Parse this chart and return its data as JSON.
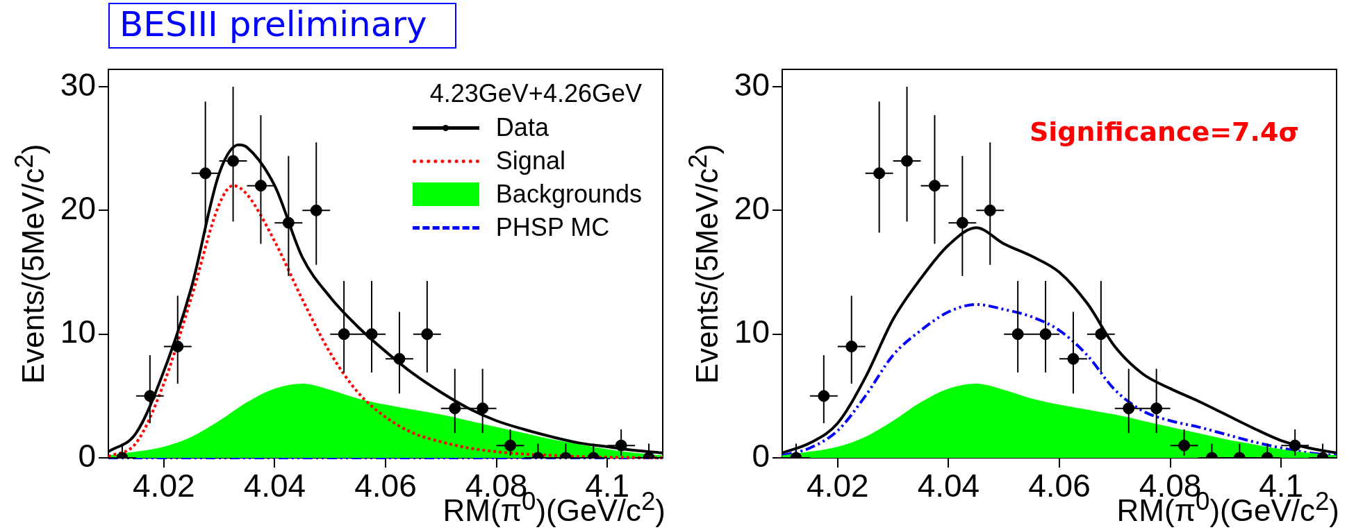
{
  "chart_data": [
    {
      "type": "scatter",
      "xlabel": "RM(π$^{0}$)(GeV/c$^{2}$)",
      "ylabel": "Events/(5MeV/c$^{2}$)",
      "xlim": [
        4.01,
        4.11
      ],
      "ylim": [
        0,
        31.4
      ],
      "xticks": [
        4.02,
        4.04,
        4.06,
        4.08,
        4.1
      ],
      "yticks": [
        0,
        10,
        20,
        30
      ],
      "legend": "top right",
      "legend_title": "4.23GeV+4.26GeV",
      "annotations": [
        "BESIII preliminary"
      ],
      "series": [
        {
          "name": "Data",
          "marker": "circle",
          "color": "#000000",
          "x": [
            4.0125,
            4.0175,
            4.0225,
            4.0275,
            4.0325,
            4.0375,
            4.0425,
            4.0475,
            4.0525,
            4.0575,
            4.0625,
            4.0675,
            4.0725,
            4.0775,
            4.0825,
            4.0875,
            4.0925,
            4.0975,
            4.1025,
            4.1075
          ],
          "values": [
            0,
            5,
            9,
            23,
            24,
            22,
            19,
            20,
            10,
            10,
            8,
            10,
            4,
            4,
            1,
            0,
            0,
            0,
            1,
            0
          ],
          "errors": [
            [
              0,
              1.15
            ],
            [
              2.8,
              8.3
            ],
            [
              6.0,
              13.1
            ],
            [
              18.2,
              28.8
            ],
            [
              19.1,
              30.0
            ],
            [
              17.3,
              27.7
            ],
            [
              14.7,
              24.4
            ],
            [
              15.6,
              25.5
            ],
            [
              6.9,
              14.3
            ],
            [
              6.9,
              14.3
            ],
            [
              5.2,
              11.8
            ],
            [
              6.9,
              14.3
            ],
            [
              2.0,
              7.2
            ],
            [
              2.0,
              7.2
            ],
            [
              0.17,
              2.3
            ],
            [
              0,
              1.15
            ],
            [
              0,
              1.15
            ],
            [
              0,
              1.15
            ],
            [
              0.17,
              2.3
            ],
            [
              0,
              1.15
            ]
          ],
          "xerrors": [
            0.0025,
            0.0025,
            0.0025,
            0.0025,
            0.0025,
            0.0025,
            0.0025,
            0.0025,
            0.0025,
            0.0025,
            0.0025,
            0.0025,
            0.0025,
            0.0025,
            0.0025,
            0.0025,
            0.0025,
            0.0025,
            0.0025,
            0.0025
          ]
        },
        {
          "type": "line",
          "color": "#000000",
          "line_style": "solid",
          "x": [
            4.01,
            4.015,
            4.02,
            4.025,
            4.03,
            4.0335,
            4.035,
            4.04,
            4.045,
            4.05,
            4.055,
            4.06,
            4.065,
            4.07,
            4.075,
            4.08,
            4.085,
            4.09,
            4.095,
            4.1,
            4.105,
            4.11
          ],
          "values": [
            0.5,
            2,
            7,
            13.8,
            23,
            25.3,
            25.1,
            22,
            16.2,
            13,
            10.6,
            8.6,
            6.8,
            5.3,
            4.0,
            3.0,
            2.3,
            1.7,
            1.2,
            0.9,
            0.6,
            0.4
          ]
        },
        {
          "name": "Signal",
          "type": "line",
          "color": "#ff0000",
          "line_style": "dotted",
          "x": [
            4.01,
            4.015,
            4.02,
            4.025,
            4.03,
            4.0325,
            4.035,
            4.04,
            4.045,
            4.05,
            4.055,
            4.06,
            4.065,
            4.07,
            4.075,
            4.08,
            4.085,
            4.09,
            4.095,
            4.1,
            4.11
          ],
          "values": [
            0.1,
            1.2,
            6,
            13,
            20.5,
            22,
            21.3,
            17.5,
            12.8,
            8.5,
            5.3,
            3.3,
            2.0,
            1.3,
            0.8,
            0.5,
            0.3,
            0.2,
            0.1,
            0.05,
            0
          ]
        },
        {
          "name": "Backgrounds",
          "type": "area",
          "color": "#00ff00",
          "x": [
            4.01,
            4.015,
            4.02,
            4.025,
            4.03,
            4.035,
            4.04,
            4.045,
            4.05,
            4.055,
            4.06,
            4.065,
            4.07,
            4.075,
            4.08,
            4.085,
            4.09,
            4.095,
            4.1,
            4.105,
            4.11
          ],
          "values": [
            0.2,
            0.5,
            0.9,
            1.7,
            3.0,
            4.5,
            5.6,
            6.0,
            5.5,
            4.8,
            4.3,
            3.9,
            3.5,
            3.0,
            2.5,
            2.0,
            1.5,
            1.1,
            0.7,
            0.4,
            0.2
          ]
        },
        {
          "name": "PHSP MC",
          "type": "line",
          "color": "#0000ff",
          "line_style": "dashed",
          "x": [
            4.01,
            4.03,
            4.05,
            4.07,
            4.09,
            4.11
          ],
          "values": [
            0,
            0,
            0,
            0,
            0,
            0
          ]
        }
      ]
    },
    {
      "type": "scatter",
      "xlabel": "RM(π$^{0}$)(GeV/c$^{2}$)",
      "ylabel": "Events/(5MeV/c$^{2}$)",
      "xlim": [
        4.01,
        4.11
      ],
      "ylim": [
        0,
        31.4
      ],
      "xticks": [
        4.02,
        4.04,
        4.06,
        4.08,
        4.1
      ],
      "yticks": [
        0,
        10,
        20,
        30
      ],
      "annotations": [
        "Significance=7.4σ"
      ],
      "series": [
        {
          "marker": "circle",
          "color": "#000000",
          "x": [
            4.0125,
            4.0175,
            4.0225,
            4.0275,
            4.0325,
            4.0375,
            4.0425,
            4.0475,
            4.0525,
            4.0575,
            4.0625,
            4.0675,
            4.0725,
            4.0775,
            4.0825,
            4.0875,
            4.0925,
            4.0975,
            4.1025,
            4.1075
          ],
          "values": [
            0,
            5,
            9,
            23,
            24,
            22,
            19,
            20,
            10,
            10,
            8,
            10,
            4,
            4,
            1,
            0,
            0,
            0,
            1,
            0
          ],
          "errors": [
            [
              0,
              1.15
            ],
            [
              2.8,
              8.3
            ],
            [
              6.0,
              13.1
            ],
            [
              18.2,
              28.8
            ],
            [
              19.1,
              30.0
            ],
            [
              17.3,
              27.7
            ],
            [
              14.7,
              24.4
            ],
            [
              15.6,
              25.5
            ],
            [
              6.9,
              14.3
            ],
            [
              6.9,
              14.3
            ],
            [
              5.2,
              11.8
            ],
            [
              6.9,
              14.3
            ],
            [
              2.0,
              7.2
            ],
            [
              2.0,
              7.2
            ],
            [
              0.17,
              2.3
            ],
            [
              0,
              1.15
            ],
            [
              0,
              1.15
            ],
            [
              0,
              1.15
            ],
            [
              0.17,
              2.3
            ],
            [
              0,
              1.15
            ]
          ],
          "xerrors": [
            0.0025,
            0.0025,
            0.0025,
            0.0025,
            0.0025,
            0.0025,
            0.0025,
            0.0025,
            0.0025,
            0.0025,
            0.0025,
            0.0025,
            0.0025,
            0.0025,
            0.0025,
            0.0025,
            0.0025,
            0.0025,
            0.0025,
            0.0025
          ]
        },
        {
          "type": "line",
          "color": "#000000",
          "line_style": "solid",
          "x": [
            4.01,
            4.015,
            4.02,
            4.025,
            4.03,
            4.035,
            4.04,
            4.045,
            4.05,
            4.055,
            4.06,
            4.065,
            4.07,
            4.075,
            4.08,
            4.085,
            4.09,
            4.095,
            4.1,
            4.105,
            4.11
          ],
          "values": [
            0.4,
            1.2,
            2.8,
            6.5,
            11.2,
            14.5,
            17.2,
            18.6,
            17.3,
            16.3,
            15.0,
            12.5,
            9.0,
            6.8,
            5.6,
            4.6,
            3.5,
            2.4,
            1.4,
            0.8,
            0.4
          ]
        },
        {
          "type": "area",
          "color": "#00ff00",
          "x": [
            4.01,
            4.015,
            4.02,
            4.025,
            4.03,
            4.035,
            4.04,
            4.045,
            4.05,
            4.055,
            4.06,
            4.065,
            4.07,
            4.075,
            4.08,
            4.085,
            4.09,
            4.095,
            4.1,
            4.105,
            4.11
          ],
          "values": [
            0.2,
            0.5,
            0.9,
            1.7,
            3.0,
            4.5,
            5.6,
            6.0,
            5.5,
            4.8,
            4.3,
            3.9,
            3.5,
            3.0,
            2.5,
            2.0,
            1.5,
            1.1,
            0.7,
            0.4,
            0.2
          ]
        },
        {
          "type": "line",
          "color": "#0000ff",
          "line_style": "dashed",
          "x": [
            4.01,
            4.015,
            4.02,
            4.025,
            4.03,
            4.035,
            4.04,
            4.045,
            4.05,
            4.055,
            4.06,
            4.065,
            4.07,
            4.075,
            4.08,
            4.085,
            4.09,
            4.095,
            4.1,
            4.105,
            4.11
          ],
          "values": [
            0.2,
            0.8,
            2.2,
            5.0,
            8.3,
            10.3,
            11.8,
            12.4,
            12.0,
            11.4,
            10.3,
            8.3,
            5.5,
            3.8,
            3.0,
            2.5,
            1.9,
            1.3,
            0.8,
            0.4,
            0.2
          ]
        }
      ]
    }
  ]
}
